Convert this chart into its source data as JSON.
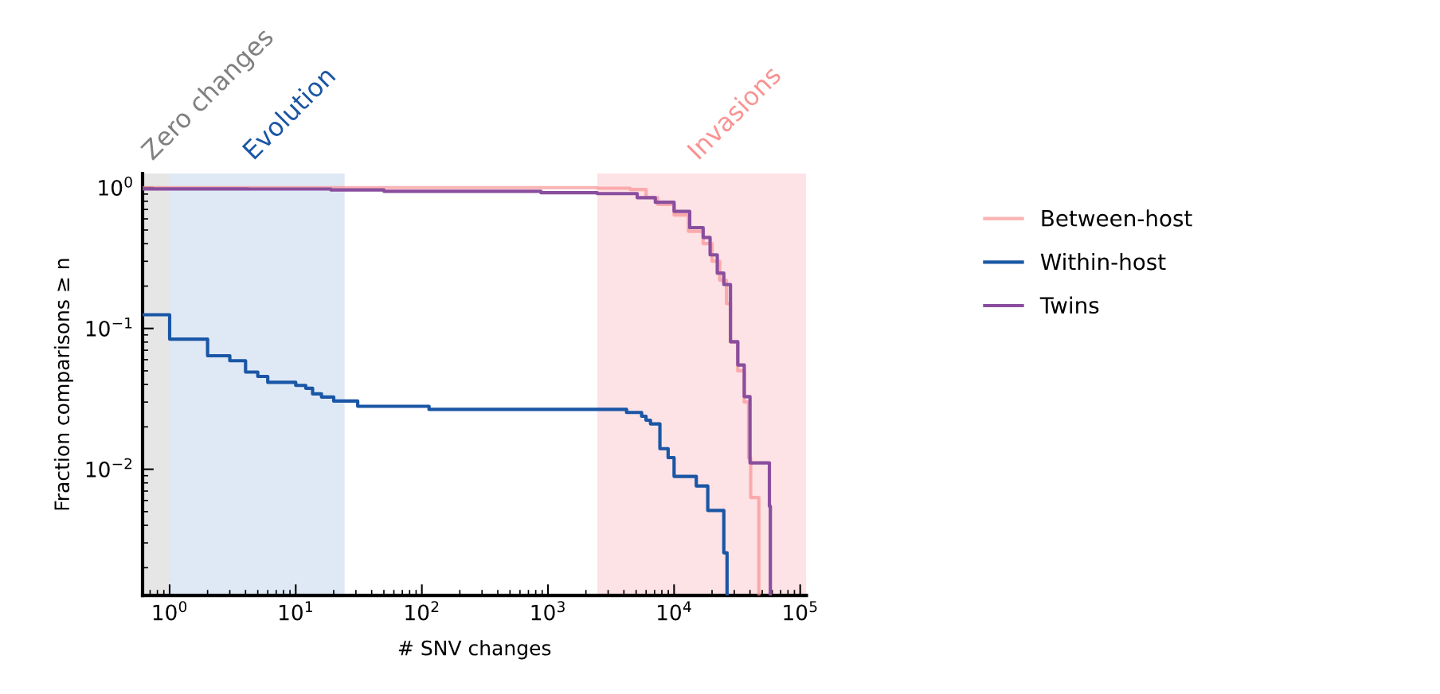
{
  "chart_data": {
    "type": "step",
    "xlabel": "# SNV changes",
    "ylabel": "Fraction comparisons ≥ n",
    "log": "xy",
    "legend": "right",
    "xlim": [
      0.61,
      112000
    ],
    "ylim": [
      0.00127,
      1.26
    ],
    "xticks": [
      {
        "value": 1,
        "label": "10$^{0}$"
      },
      {
        "value": 10,
        "label": "10$^{1}$"
      },
      {
        "value": 100,
        "label": "10$^{2}$"
      },
      {
        "value": 1000,
        "label": "10$^{3}$"
      },
      {
        "value": 10000,
        "label": "10$^{4}$"
      },
      {
        "value": 100000,
        "label": "10$^{5}$"
      }
    ],
    "yticks": [
      {
        "value": 1,
        "label": "10$^{0}$"
      },
      {
        "value": 0.1,
        "label": "10$^{−1}$"
      },
      {
        "value": 0.01,
        "label": "10$^{−2}$"
      }
    ],
    "bands": [
      {
        "axis": "x",
        "from": 0.61,
        "to": 1,
        "label": "Zero changes",
        "color": "#e6e6e6"
      },
      {
        "axis": "x",
        "from": 1,
        "to": 24.4,
        "label": "Evolution",
        "color": "#dfe9f5"
      },
      {
        "axis": "x",
        "from": 2460,
        "to": 112000,
        "label": "Invasions",
        "color": "#fde2e6"
      }
    ],
    "series": [
      {
        "name": "Between-host",
        "color": "#f99393",
        "x": [
          0.61,
          2460,
          4500,
          6000,
          7400,
          10000,
          13000,
          17000,
          20000,
          23000,
          26000,
          28000,
          32000,
          36000,
          39000,
          40500,
          47000
        ],
        "values": [
          1.0,
          0.99,
          0.97,
          0.85,
          0.76,
          0.64,
          0.49,
          0.4,
          0.3,
          0.22,
          0.15,
          0.08,
          0.05,
          0.03,
          0.012,
          0.0063,
          0.00127
        ]
      },
      {
        "name": "Within-host",
        "color": "#1a56a5",
        "x": [
          0.61,
          1,
          2,
          3,
          4,
          5,
          6,
          10,
          12,
          13.6,
          16,
          20,
          31,
          114,
          4200,
          5530,
          5990,
          6500,
          7720,
          8970,
          10000,
          15000,
          18500,
          24800,
          26300
        ],
        "values": [
          0.125,
          0.084,
          0.064,
          0.059,
          0.049,
          0.0456,
          0.0414,
          0.0394,
          0.0376,
          0.0343,
          0.0326,
          0.0305,
          0.028,
          0.0266,
          0.0253,
          0.0238,
          0.0223,
          0.021,
          0.014,
          0.0121,
          0.0089,
          0.0076,
          0.0051,
          0.00255,
          0.00127
        ]
      },
      {
        "name": "Twins",
        "color": "#8a4e9e",
        "x": [
          0.61,
          4.2,
          19,
          50,
          880,
          2460,
          5100,
          7100,
          10000,
          13300,
          17000,
          19300,
          22000,
          24800,
          28000,
          32000,
          36000,
          40000,
          57000,
          58000
        ],
        "values": [
          0.98,
          0.978,
          0.963,
          0.942,
          0.92,
          0.907,
          0.848,
          0.787,
          0.678,
          0.52,
          0.443,
          0.333,
          0.247,
          0.205,
          0.0805,
          0.055,
          0.0328,
          0.0111,
          0.00546,
          0.00127
        ]
      }
    ]
  }
}
